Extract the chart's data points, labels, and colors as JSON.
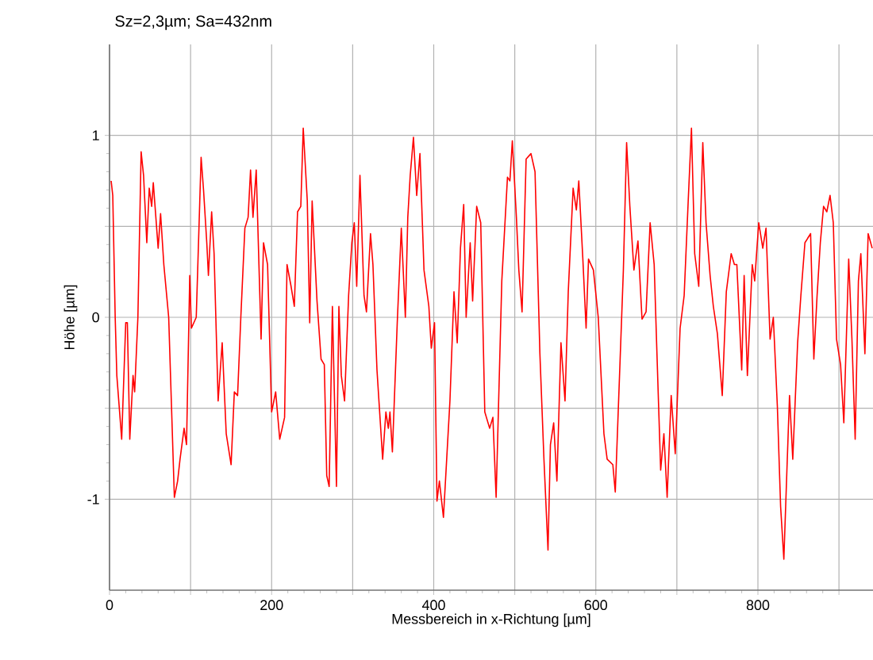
{
  "chart_data": {
    "type": "line",
    "title": "Sz=2,3µm; Sa=432nm",
    "xlabel": "Messbereich in x-Richtung [µm]",
    "ylabel": "Höhe [µm]",
    "color": "#ff0000",
    "grid": true,
    "xlim": [
      0,
      942
    ],
    "ylim": [
      -1.5,
      1.5
    ],
    "xticks": [
      0,
      {
        "value": 100,
        "label": null
      },
      200,
      {
        "value": 300,
        "label": null
      },
      400,
      {
        "value": 500,
        "label": null
      },
      600,
      {
        "value": 700,
        "label": null
      },
      800,
      {
        "value": 900,
        "label": null
      }
    ],
    "yticks": [
      -1,
      {
        "value": -0.5,
        "label": null
      },
      0,
      {
        "value": 0.5,
        "label": null
      },
      1
    ],
    "x": [
      2,
      4,
      7,
      9,
      15,
      20,
      22,
      25,
      29,
      31,
      35,
      39,
      42,
      46,
      49,
      52,
      54,
      60,
      63,
      67,
      73,
      80,
      84,
      87,
      92,
      95,
      99,
      101,
      107,
      113,
      116,
      120,
      122,
      126,
      129,
      134,
      139,
      144,
      150,
      154,
      158,
      162,
      167,
      171,
      174,
      177,
      181,
      187,
      190,
      195,
      200,
      205,
      210,
      216,
      219,
      224,
      228,
      232,
      236,
      239,
      244,
      247,
      250,
      256,
      261,
      265,
      268,
      271,
      275,
      280,
      283,
      286,
      290,
      295,
      299,
      302,
      305,
      309,
      314,
      317,
      322,
      325,
      330,
      337,
      341,
      344,
      346,
      349,
      355,
      360,
      365,
      368,
      371,
      375,
      379,
      383,
      388,
      394,
      397,
      401,
      404,
      407,
      412,
      416,
      420,
      425,
      429,
      433,
      437,
      440,
      445,
      448,
      453,
      458,
      463,
      469,
      473,
      477,
      484,
      491,
      494,
      497,
      502,
      505,
      509,
      514,
      520,
      525,
      531,
      536,
      541,
      544,
      548,
      552,
      557,
      562,
      566,
      572,
      576,
      579,
      584,
      588,
      591,
      597,
      603,
      610,
      614,
      621,
      624,
      630,
      634,
      638,
      642,
      647,
      652,
      657,
      662,
      667,
      672,
      675,
      680,
      684,
      688,
      693,
      698,
      704,
      709,
      714,
      718,
      722,
      727,
      732,
      736,
      741,
      745,
      750,
      756,
      761,
      767,
      771,
      774,
      780,
      783,
      787,
      793,
      796,
      801,
      806,
      810,
      815,
      819,
      824,
      828,
      832,
      836,
      839,
      843,
      849,
      853,
      858,
      865,
      869,
      873,
      877,
      881,
      885,
      889,
      893,
      897,
      902,
      906,
      912,
      916,
      920,
      924,
      927,
      932,
      936,
      941
    ],
    "values": [
      0.75,
      0.67,
      0,
      -0.32,
      -0.67,
      -0.03,
      -0.03,
      -0.67,
      -0.32,
      -0.41,
      0,
      0.91,
      0.78,
      0.41,
      0.71,
      0.61,
      0.74,
      0.38,
      0.57,
      0.29,
      0,
      -0.99,
      -0.9,
      -0.78,
      -0.61,
      -0.7,
      0.23,
      -0.06,
      0,
      0.88,
      0.7,
      0.41,
      0.23,
      0.58,
      0.35,
      -0.46,
      -0.14,
      -0.64,
      -0.81,
      -0.41,
      -0.43,
      0,
      0.49,
      0.55,
      0.81,
      0.55,
      0.81,
      -0.12,
      0.41,
      0.29,
      -0.52,
      -0.41,
      -0.67,
      -0.55,
      0.29,
      0.17,
      0.06,
      0.58,
      0.61,
      1.04,
      0.64,
      -0.03,
      0.64,
      0.09,
      -0.23,
      -0.26,
      -0.87,
      -0.93,
      0.06,
      -0.93,
      0.06,
      -0.32,
      -0.46,
      0.12,
      0.41,
      0.52,
      0.17,
      0.78,
      0.12,
      0.03,
      0.46,
      0.29,
      -0.29,
      -0.78,
      -0.52,
      -0.61,
      -0.52,
      -0.74,
      -0.03,
      0.49,
      0,
      0.55,
      0.78,
      0.99,
      0.67,
      0.9,
      0.26,
      0.06,
      -0.17,
      -0.03,
      -1.01,
      -0.9,
      -1.1,
      -0.78,
      -0.46,
      0.14,
      -0.14,
      0.38,
      0.62,
      0,
      0.41,
      0.09,
      0.61,
      0.52,
      -0.52,
      -0.61,
      -0.55,
      -0.99,
      0.2,
      0.77,
      0.75,
      0.97,
      0.55,
      0.26,
      0.03,
      0.87,
      0.9,
      0.8,
      -0.2,
      -0.78,
      -1.28,
      -0.7,
      -0.58,
      -0.9,
      -0.14,
      -0.46,
      0.14,
      0.71,
      0.59,
      0.75,
      0.32,
      -0.06,
      0.32,
      0.26,
      0,
      -0.64,
      -0.78,
      -0.81,
      -0.96,
      -0.23,
      0.26,
      0.96,
      0.61,
      0.26,
      0.42,
      -0.01,
      0.03,
      0.52,
      0.29,
      -0.14,
      -0.84,
      -0.64,
      -0.99,
      -0.43,
      -0.75,
      -0.06,
      0.12,
      0.64,
      1.04,
      0.35,
      0.17,
      0.96,
      0.52,
      0.23,
      0.06,
      -0.09,
      -0.43,
      0.14,
      0.35,
      0.29,
      0.29,
      -0.29,
      0.23,
      -0.32,
      0.29,
      0.2,
      0.52,
      0.38,
      0.49,
      -0.12,
      0,
      -0.49,
      -1.04,
      -1.33,
      -0.81,
      -0.43,
      -0.78,
      -0.14,
      0.12,
      0.41,
      0.46,
      -0.23,
      0.12,
      0.41,
      0.61,
      0.58,
      0.67,
      0.52,
      -0.12,
      -0.26,
      -0.58,
      0.32,
      -0.12,
      -0.67,
      0.2,
      0.35,
      -0.2,
      0.46,
      0.38
    ]
  }
}
